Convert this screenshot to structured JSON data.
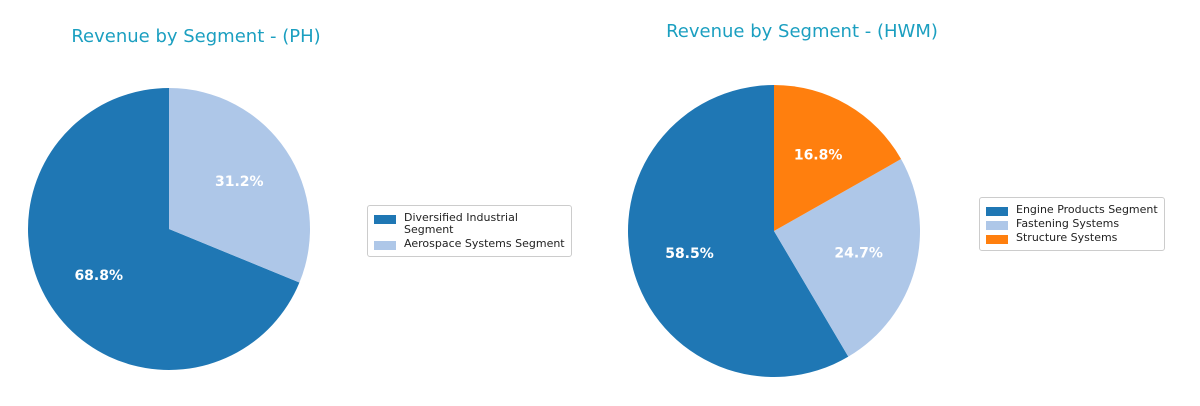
{
  "chart_data": [
    {
      "type": "pie",
      "title": "Revenue by Segment - (PH)",
      "categories": [
        "Diversified Industrial\nSegment",
        "Aerospace Systems Segment"
      ],
      "values": [
        68.8,
        31.2
      ],
      "value_labels": [
        "68.8%",
        "31.2%"
      ],
      "colors": [
        "#1f77b4",
        "#aec7e8"
      ],
      "legend": "right"
    },
    {
      "type": "pie",
      "title": "Revenue by Segment - (HWM)",
      "categories": [
        "Engine Products Segment",
        "Fastening Systems",
        "Structure Systems"
      ],
      "values": [
        58.5,
        24.7,
        16.8
      ],
      "value_labels": [
        "58.5%",
        "24.7%",
        "16.8%"
      ],
      "colors": [
        "#1f77b4",
        "#aec7e8",
        "#ff7f0e"
      ],
      "legend": "right"
    }
  ]
}
